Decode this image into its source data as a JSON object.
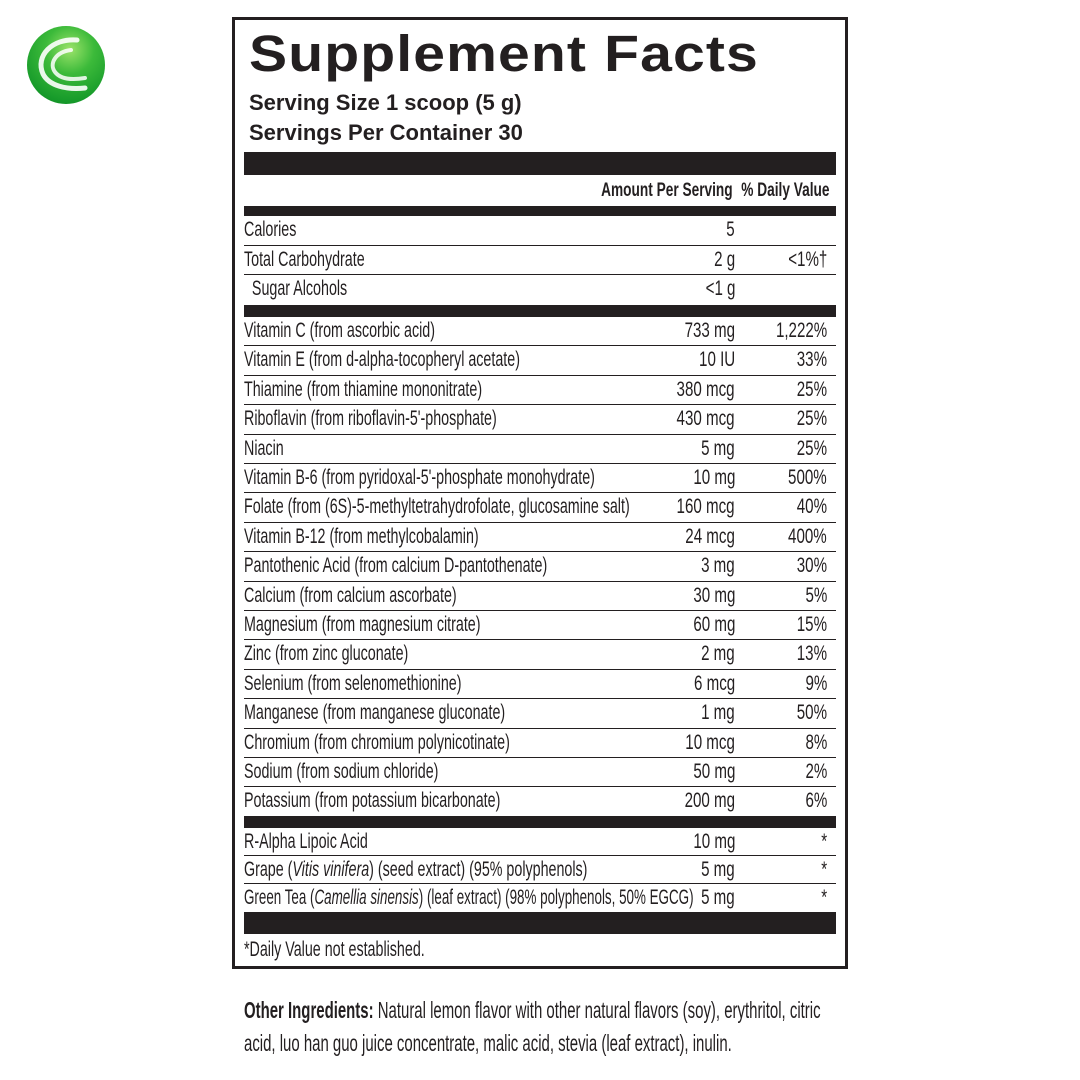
{
  "logo": {
    "colors": {
      "primary": "#169a2a",
      "highlight": "#9be36a"
    }
  },
  "label": {
    "title": "Supplement Facts",
    "serving_size": "Serving Size  1 scoop (5 g)",
    "servings_per_container": "Servings Per Container 30",
    "header": {
      "amount": "Amount Per Serving",
      "dv": "% Daily Value"
    },
    "group1": [
      {
        "name": "Calories",
        "amount": "5",
        "dv": ""
      },
      {
        "name": "Total Carbohydrate",
        "amount": "2 g",
        "dv": "<1%†"
      },
      {
        "name": "  Sugar Alcohols",
        "amount": "<1 g",
        "dv": ""
      }
    ],
    "group2": [
      {
        "name": "Vitamin C (from ascorbic acid)",
        "amount": "733 mg",
        "dv": "1,222%"
      },
      {
        "name": "Vitamin E (from d-alpha-tocopheryl acetate)",
        "amount": "10 IU",
        "dv": "33%"
      },
      {
        "name": "Thiamine (from thiamine mononitrate)",
        "amount": "380 mcg",
        "dv": "25%"
      },
      {
        "name": "Riboflavin (from riboflavin-5'-phosphate)",
        "amount": "430 mcg",
        "dv": "25%"
      },
      {
        "name": "Niacin",
        "amount": "5 mg",
        "dv": "25%"
      },
      {
        "name": "Vitamin B-6 (from pyridoxal-5'-phosphate monohydrate)",
        "amount": "10 mg",
        "dv": "500%"
      },
      {
        "name": "Folate (from (6S)-5-methyltetrahydrofolate, glucosamine salt)",
        "amount": "160 mcg",
        "dv": "40%"
      },
      {
        "name": "Vitamin B-12 (from methylcobalamin)",
        "amount": "24 mcg",
        "dv": "400%"
      },
      {
        "name": "Pantothenic Acid (from calcium D-pantothenate)",
        "amount": "3 mg",
        "dv": "30%"
      },
      {
        "name": "Calcium (from calcium ascorbate)",
        "amount": "30 mg",
        "dv": "5%"
      },
      {
        "name": "Magnesium (from magnesium citrate)",
        "amount": "60 mg",
        "dv": "15%"
      },
      {
        "name": "Zinc (from zinc gluconate)",
        "amount": "2 mg",
        "dv": "13%"
      },
      {
        "name": "Selenium (from selenomethionine)",
        "amount": "6 mcg",
        "dv": "9%"
      },
      {
        "name": "Manganese (from manganese gluconate)",
        "amount": "1 mg",
        "dv": "50%"
      },
      {
        "name": "Chromium (from chromium polynicotinate)",
        "amount": "10 mcg",
        "dv": "8%"
      },
      {
        "name": "Sodium (from sodium chloride)",
        "amount": "50 mg",
        "dv": "2%"
      },
      {
        "name": "Potassium (from potassium bicarbonate)",
        "amount": "200 mg",
        "dv": "6%"
      }
    ],
    "group3": [
      {
        "name": "R-Alpha Lipoic Acid",
        "amount": "10 mg",
        "dv": "*"
      },
      {
        "name": "Grape (",
        "italic": "Vitis vinifera",
        "rest": ") (seed extract) (95% polyphenols)",
        "amount": "5 mg",
        "dv": "*"
      },
      {
        "name": "Green Tea (",
        "italic": "Camellia sinensis",
        "rest": ") (leaf extract) (98% polyphenols, 50% EGCG)",
        "amount": "5 mg",
        "dv": "*"
      }
    ],
    "footnote": "*Daily Value not established."
  },
  "other_ingredients": {
    "label": "Other Ingredients:",
    "line1": " Natural lemon flavor with other natural flavors (soy), erythritol, citric",
    "line2": "acid, luo han guo juice concentrate, malic acid, stevia (leaf extract), inulin."
  }
}
